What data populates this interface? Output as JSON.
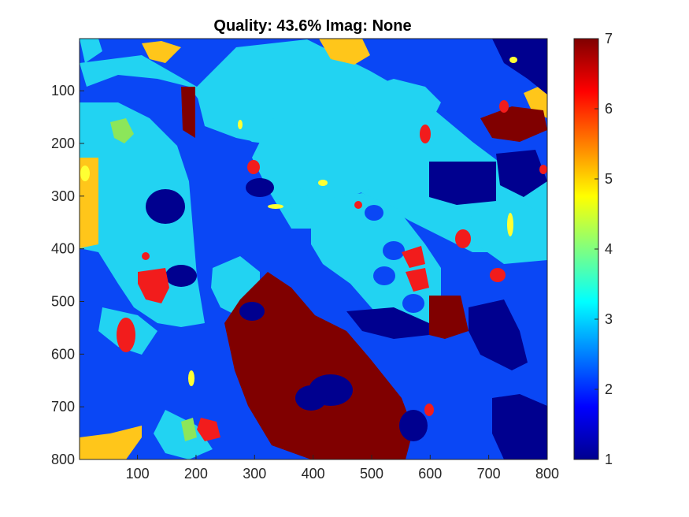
{
  "chart_data": {
    "type": "heatmap",
    "title": "Quality: 43.6% Imag:  None",
    "xlabel": "",
    "ylabel": "",
    "xlim": [
      1,
      800
    ],
    "ylim": [
      1,
      800
    ],
    "y_reversed": true,
    "x_ticks": [
      "100",
      "200",
      "300",
      "400",
      "500",
      "600",
      "700",
      "800"
    ],
    "y_ticks": [
      "100",
      "200",
      "300",
      "400",
      "500",
      "600",
      "700",
      "800"
    ],
    "colorbar": {
      "colormap": "jet",
      "range": [
        1,
        7
      ],
      "ticks": [
        "1",
        "2",
        "3",
        "4",
        "5",
        "6",
        "7"
      ]
    },
    "grid": false,
    "dominant_classes": [
      {
        "value": 1,
        "color": "#00008F"
      },
      {
        "value": 2,
        "color": "#0A47F5"
      },
      {
        "value": 3,
        "color": "#22D3F2"
      },
      {
        "value": 5,
        "color": "#FFC61A"
      },
      {
        "value": 6,
        "color": "#F21C1C"
      },
      {
        "value": 7,
        "color": "#800000"
      }
    ]
  }
}
